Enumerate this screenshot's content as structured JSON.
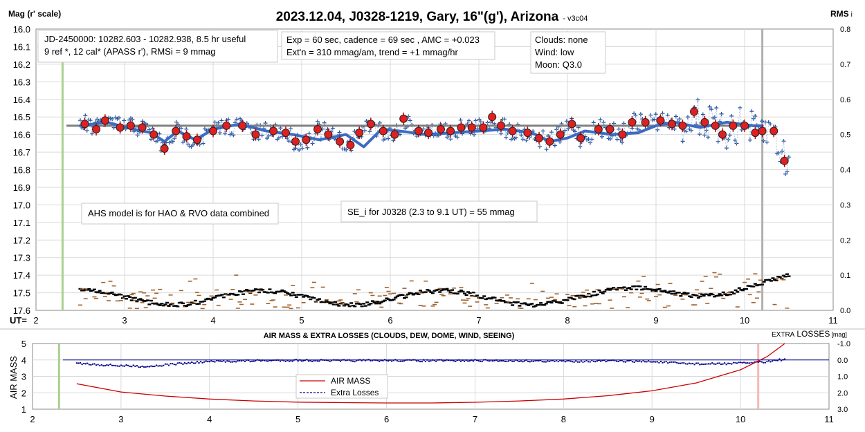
{
  "chart_data": [
    {
      "type": "scatter",
      "title": "2023.12.04, J0328-1219, Gary, 16\"(g'), Arizona",
      "version_tag": "- v3c04",
      "ylabel_left": "Mag (r' scale)",
      "ylabel_right": "RMS",
      "ylabel_right_suffix": "i",
      "xlabel": "UT=",
      "xlim": [
        2,
        11
      ],
      "ylim_left": [
        17.6,
        16.0
      ],
      "ylim_right": [
        0.0,
        0.8
      ],
      "x_ticks": [
        "2",
        "3",
        "4",
        "5",
        "6",
        "7",
        "8",
        "9",
        "10",
        "11"
      ],
      "y_left_ticks": [
        "16.0",
        "16.1",
        "16.2",
        "16.3",
        "16.4",
        "16.5",
        "16.6",
        "16.7",
        "16.8",
        "16.9",
        "17.0",
        "17.1",
        "17.2",
        "17.3",
        "17.4",
        "17.5",
        "17.6"
      ],
      "y_right_ticks": [
        "0.0",
        "0.1",
        "0.2",
        "0.3",
        "0.4",
        "0.5",
        "0.6",
        "0.7",
        "0.8"
      ],
      "grid": true,
      "annotations": {
        "jd_line1": "JD-2450000: 10282.603 - 10282.938, 8.5 hr useful",
        "jd_line2": "9 ref *, 12 cal*  (APASS r'), RMSi = 9 mmag",
        "exp_line1": "Exp = 60 sec, cadence = 69 sec , AMC = +0.023",
        "exp_line2": "Ext'n = 310 mmag/am, trend = +1 mmag/hr",
        "clouds": "Clouds: none",
        "wind": "Wind:   low",
        "moon": "Moon:  Q3.0",
        "ahs_note": "AHS model is for HAO & RVO data combined",
        "se_note": "SE_i for J0328 (2.3 to 9.1 UT) = 55 mmag"
      },
      "markers": {
        "start_ut": 2.3,
        "end_ut": 10.2
      },
      "reference_level": {
        "value": 16.55,
        "x": [
          2.5,
          10.2
        ]
      },
      "series_binned": {
        "x": [
          2.55,
          2.68,
          2.78,
          2.95,
          3.07,
          3.2,
          3.33,
          3.45,
          3.58,
          3.7,
          3.82,
          4.0,
          4.15,
          4.33,
          4.48,
          4.68,
          4.82,
          4.93,
          5.05,
          5.18,
          5.3,
          5.43,
          5.55,
          5.65,
          5.78,
          5.92,
          6.05,
          6.15,
          6.32,
          6.43,
          6.57,
          6.68,
          6.8,
          6.92,
          7.05,
          7.15,
          7.25,
          7.38,
          7.55,
          7.68,
          7.8,
          7.92,
          8.05,
          8.15,
          8.35,
          8.48,
          8.62,
          8.73,
          8.88,
          9.05,
          9.18,
          9.3,
          9.43,
          9.55,
          9.67,
          9.75,
          9.87,
          10.0,
          10.12,
          10.2,
          10.33,
          10.45
        ],
        "y": [
          16.54,
          16.57,
          16.52,
          16.56,
          16.55,
          16.56,
          16.6,
          16.68,
          16.58,
          16.61,
          16.63,
          16.58,
          16.55,
          16.55,
          16.6,
          16.58,
          16.59,
          16.64,
          16.63,
          16.57,
          16.6,
          16.64,
          16.66,
          16.59,
          16.54,
          16.58,
          16.6,
          16.51,
          16.58,
          16.59,
          16.57,
          16.58,
          16.56,
          16.56,
          16.56,
          16.5,
          16.55,
          16.58,
          16.59,
          16.62,
          16.64,
          16.6,
          16.54,
          16.62,
          16.57,
          16.57,
          16.6,
          16.53,
          16.53,
          16.52,
          16.54,
          16.55,
          16.47,
          16.53,
          16.55,
          16.6,
          16.55,
          16.55,
          16.59,
          16.58,
          16.58,
          16.75
        ]
      },
      "model_curve": {
        "x": [
          2.5,
          2.8,
          3.1,
          3.3,
          3.45,
          3.6,
          3.8,
          4.0,
          4.3,
          4.6,
          4.9,
          5.2,
          5.5,
          5.7,
          5.9,
          6.1,
          6.4,
          6.7,
          7.0,
          7.3,
          7.6,
          7.8,
          8.0,
          8.2,
          8.5,
          8.8,
          9.0,
          9.2,
          9.5,
          9.8,
          10.1,
          10.2
        ],
        "y": [
          16.55,
          16.53,
          16.57,
          16.59,
          16.64,
          16.58,
          16.63,
          16.57,
          16.54,
          16.58,
          16.6,
          16.63,
          16.6,
          16.67,
          16.57,
          16.58,
          16.6,
          16.59,
          16.58,
          16.57,
          16.59,
          16.64,
          16.62,
          16.58,
          16.6,
          16.59,
          16.55,
          16.53,
          16.56,
          16.53,
          16.55,
          16.55
        ]
      },
      "rms_series": {
        "start": 2.5,
        "end": 10.5,
        "step": 0.02,
        "base": [
          0.01,
          0.02,
          0.03,
          0.02,
          0.05,
          0.08
        ]
      }
    },
    {
      "type": "line",
      "title": "AIR MASS & EXTRA LOSSES (CLOUDS, DEW, DOME, WIND, SEEING)",
      "right_label_prefix": "EXTRA",
      "right_label_main": "LOSSES",
      "right_label_unit": "[mag]",
      "ylabel": "AIR MASS",
      "xlim": [
        2,
        11
      ],
      "ylim_left": [
        1,
        5
      ],
      "ylim_right": [
        3.0,
        -1.0
      ],
      "x_ticks": [
        "2",
        "3",
        "4",
        "5",
        "6",
        "7",
        "8",
        "9",
        "10",
        "11"
      ],
      "y_left_ticks": [
        "1",
        "2",
        "3",
        "4",
        "5"
      ],
      "y_right_ticks": [
        "3.0",
        "2.0",
        "1.0",
        "0.0",
        "-1.0"
      ],
      "legend": [
        "AIR MASS",
        "Extra Losses"
      ],
      "colors": {
        "airmass": "#cc0000",
        "losses": "#00008b",
        "start": "#a9d18e",
        "end": "#f4b8b8"
      },
      "airmass": {
        "x": [
          2.5,
          3,
          3.5,
          4,
          4.5,
          5,
          5.5,
          6,
          6.5,
          7,
          7.5,
          8,
          8.5,
          9,
          9.5,
          10,
          10.3,
          10.5
        ],
        "y": [
          2.55,
          2.05,
          1.8,
          1.62,
          1.5,
          1.43,
          1.4,
          1.38,
          1.38,
          1.42,
          1.5,
          1.62,
          1.82,
          2.12,
          2.6,
          3.4,
          4.2,
          5.0
        ]
      },
      "extra_losses": {
        "x": [
          2.5,
          2.8,
          3.0,
          3.3,
          3.6,
          4.0,
          4.5,
          5,
          5.5,
          6,
          6.5,
          7,
          7.5,
          8,
          8.5,
          9,
          9.3,
          9.6,
          10.0,
          10.3,
          10.5
        ],
        "y": [
          0.2,
          0.3,
          0.35,
          0.4,
          0.25,
          0.1,
          0.05,
          0.02,
          0.05,
          0.03,
          0.05,
          0.04,
          0.05,
          0.08,
          0.06,
          0.1,
          0.2,
          0.25,
          0.2,
          0.1,
          -0.05
        ]
      }
    }
  ]
}
